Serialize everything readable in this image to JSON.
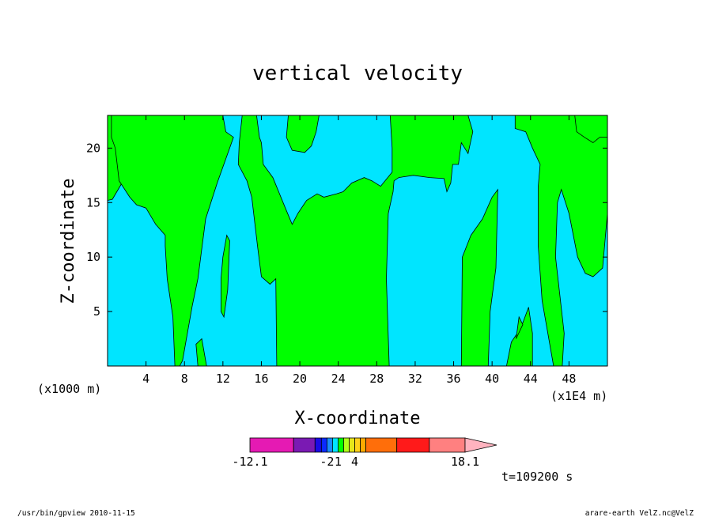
{
  "chart_data": {
    "type": "heatmap",
    "title": "vertical velocity",
    "xlabel": "X-coordinate",
    "ylabel": "Z-coordinate",
    "x_unit_left": "(x1000 m)",
    "x_unit_right": "(x1E4 m)",
    "xlim": [
      0,
      52
    ],
    "ylim": [
      0,
      23
    ],
    "xticks": [
      "4",
      "8",
      "12",
      "16",
      "20",
      "24",
      "28",
      "32",
      "36",
      "40",
      "44",
      "48"
    ],
    "yticks": [
      "5",
      "10",
      "15",
      "20"
    ],
    "colors": {
      "positive_region": "#00ff00",
      "negative_region": "#00e5ff"
    },
    "green_regions": [
      [
        [
          0,
          23
        ],
        [
          0,
          15.2
        ],
        [
          0.5,
          15.3
        ],
        [
          1.5,
          16.8
        ],
        [
          2.8,
          17.2
        ],
        [
          4,
          16.5
        ],
        [
          5,
          16.2
        ],
        [
          7,
          16.5
        ],
        [
          7.8,
          17.5
        ],
        [
          9,
          19
        ],
        [
          10.5,
          21
        ],
        [
          11.3,
          22.5
        ],
        [
          11.3,
          23
        ]
      ],
      [
        [
          8.3,
          23
        ],
        [
          8.3,
          21
        ],
        [
          8.8,
          20.5
        ],
        [
          9.6,
          21
        ],
        [
          9.6,
          23
        ]
      ],
      [
        [
          12,
          23
        ],
        [
          12.3,
          21.5
        ],
        [
          13.1,
          21
        ],
        [
          12.7,
          20
        ],
        [
          11.4,
          16.8
        ],
        [
          10.2,
          13.5
        ],
        [
          9.4,
          8
        ],
        [
          8.8,
          5.5
        ],
        [
          8.3,
          3
        ],
        [
          7.8,
          0.5
        ],
        [
          7.5,
          0
        ],
        [
          7,
          0
        ],
        [
          6.8,
          4.5
        ],
        [
          6.2,
          8
        ],
        [
          6,
          11
        ],
        [
          6,
          12
        ],
        [
          5,
          13
        ],
        [
          4,
          14.5
        ],
        [
          3,
          14.8
        ],
        [
          2.3,
          15.5
        ],
        [
          1.2,
          17
        ],
        [
          0.8,
          20
        ],
        [
          0.4,
          21
        ],
        [
          0.4,
          23
        ]
      ],
      [
        [
          9.4,
          0
        ],
        [
          9.2,
          2
        ],
        [
          9.8,
          2.5
        ],
        [
          10.3,
          0
        ]
      ],
      [
        [
          11.8,
          5
        ],
        [
          12.1,
          4.5
        ],
        [
          12.5,
          7
        ],
        [
          12.7,
          11.5
        ],
        [
          12.4,
          12
        ],
        [
          12,
          10
        ],
        [
          11.8,
          8
        ]
      ],
      [
        [
          14,
          23
        ],
        [
          13.7,
          20.5
        ],
        [
          13.6,
          18.5
        ],
        [
          14.5,
          17
        ],
        [
          15,
          15.5
        ],
        [
          15.6,
          11
        ],
        [
          16,
          8.2
        ],
        [
          16.9,
          7.5
        ],
        [
          17.5,
          8
        ],
        [
          17.6,
          0
        ],
        [
          29.3,
          0
        ],
        [
          29,
          8
        ],
        [
          29.2,
          14
        ],
        [
          29.7,
          16
        ],
        [
          29.8,
          17
        ],
        [
          30.3,
          17.3
        ],
        [
          31.8,
          17.5
        ],
        [
          33.5,
          17.3
        ],
        [
          35,
          17.2
        ],
        [
          35.3,
          16
        ],
        [
          35.7,
          16.8
        ],
        [
          35.9,
          18.5
        ],
        [
          36.5,
          18.5
        ],
        [
          36.8,
          20.5
        ],
        [
          37.5,
          19.5
        ],
        [
          38,
          21.5
        ],
        [
          37.5,
          23
        ],
        [
          29.4,
          23
        ],
        [
          29.6,
          20
        ],
        [
          29.6,
          17.8
        ],
        [
          28.4,
          16.5
        ],
        [
          27.5,
          17
        ],
        [
          26.7,
          17.3
        ],
        [
          25.4,
          16.8
        ],
        [
          24.5,
          16
        ],
        [
          23.8,
          15.8
        ],
        [
          22.5,
          15.5
        ],
        [
          21.8,
          15.8
        ],
        [
          20.7,
          15.2
        ],
        [
          19.8,
          14
        ],
        [
          19.2,
          13
        ],
        [
          18.5,
          14.5
        ],
        [
          17.2,
          17.3
        ],
        [
          16.2,
          18.5
        ],
        [
          16,
          20.5
        ],
        [
          15.8,
          21
        ],
        [
          15.5,
          23
        ]
      ],
      [
        [
          18.8,
          23
        ],
        [
          18.6,
          21
        ],
        [
          19.2,
          19.8
        ],
        [
          20.5,
          19.6
        ],
        [
          21.2,
          20.2
        ],
        [
          21.7,
          21.5
        ],
        [
          22,
          23
        ]
      ],
      [
        [
          36.8,
          0
        ],
        [
          36.9,
          10
        ],
        [
          37.8,
          12
        ],
        [
          39,
          13.5
        ],
        [
          40,
          15.5
        ],
        [
          40.6,
          16.2
        ],
        [
          40.4,
          9
        ],
        [
          39.8,
          5
        ],
        [
          39.6,
          0
        ]
      ],
      [
        [
          41.5,
          0
        ],
        [
          42,
          2.2
        ],
        [
          43,
          3.5
        ],
        [
          43.8,
          5.4
        ],
        [
          44.2,
          3
        ],
        [
          44.2,
          0
        ]
      ],
      [
        [
          42.5,
          2.5
        ],
        [
          42.8,
          4.5
        ],
        [
          43.2,
          3.8
        ]
      ],
      [
        [
          46.4,
          0
        ],
        [
          45.2,
          6
        ],
        [
          44.8,
          11
        ],
        [
          44.8,
          16.5
        ],
        [
          45,
          18.5
        ],
        [
          44.2,
          20
        ],
        [
          43.5,
          21.5
        ],
        [
          42.4,
          21.8
        ],
        [
          42.4,
          23
        ],
        [
          51.2,
          23
        ],
        [
          52,
          23
        ],
        [
          52,
          14
        ],
        [
          51.5,
          9
        ],
        [
          50.5,
          8.2
        ],
        [
          49.7,
          8.5
        ],
        [
          48.9,
          10
        ],
        [
          48,
          14
        ],
        [
          47.2,
          16.2
        ],
        [
          46.8,
          15
        ],
        [
          46.6,
          10
        ],
        [
          47.5,
          3
        ],
        [
          47.3,
          0
        ]
      ],
      [
        [
          48.6,
          23
        ],
        [
          48.8,
          21.5
        ],
        [
          49.6,
          21
        ],
        [
          50.5,
          20.5
        ],
        [
          51.2,
          21
        ],
        [
          52,
          21
        ],
        [
          52,
          23
        ]
      ]
    ],
    "colorbar": {
      "boundary_labels": [
        "-12.1",
        "-2",
        "1",
        "4",
        "18.1"
      ],
      "bands": [
        {
          "color": "#e51ab3",
          "weight": 55
        },
        {
          "color": "#7a1ab3",
          "weight": 27
        },
        {
          "color": "#1a0ae6",
          "weight": 8
        },
        {
          "color": "#0a2aff",
          "weight": 7
        },
        {
          "color": "#1a8cff",
          "weight": 7
        },
        {
          "color": "#00e5ff",
          "weight": 7
        },
        {
          "color": "#00ff00",
          "weight": 7
        },
        {
          "color": "#b3ff1a",
          "weight": 7
        },
        {
          "color": "#e6e61a",
          "weight": 7
        },
        {
          "color": "#ffd11a",
          "weight": 7
        },
        {
          "color": "#ffaa00",
          "weight": 7
        },
        {
          "color": "#ff6e0a",
          "weight": 39
        },
        {
          "color": "#ff1a1a",
          "weight": 41
        },
        {
          "color": "#ff8080",
          "weight": 45
        }
      ],
      "extend_color": "#ffb3bf"
    }
  },
  "time_label": "t=109200 s",
  "footer_left": "/usr/bin/gpview   2010-11-15",
  "footer_right": "arare-earth_VelZ.nc@VelZ"
}
